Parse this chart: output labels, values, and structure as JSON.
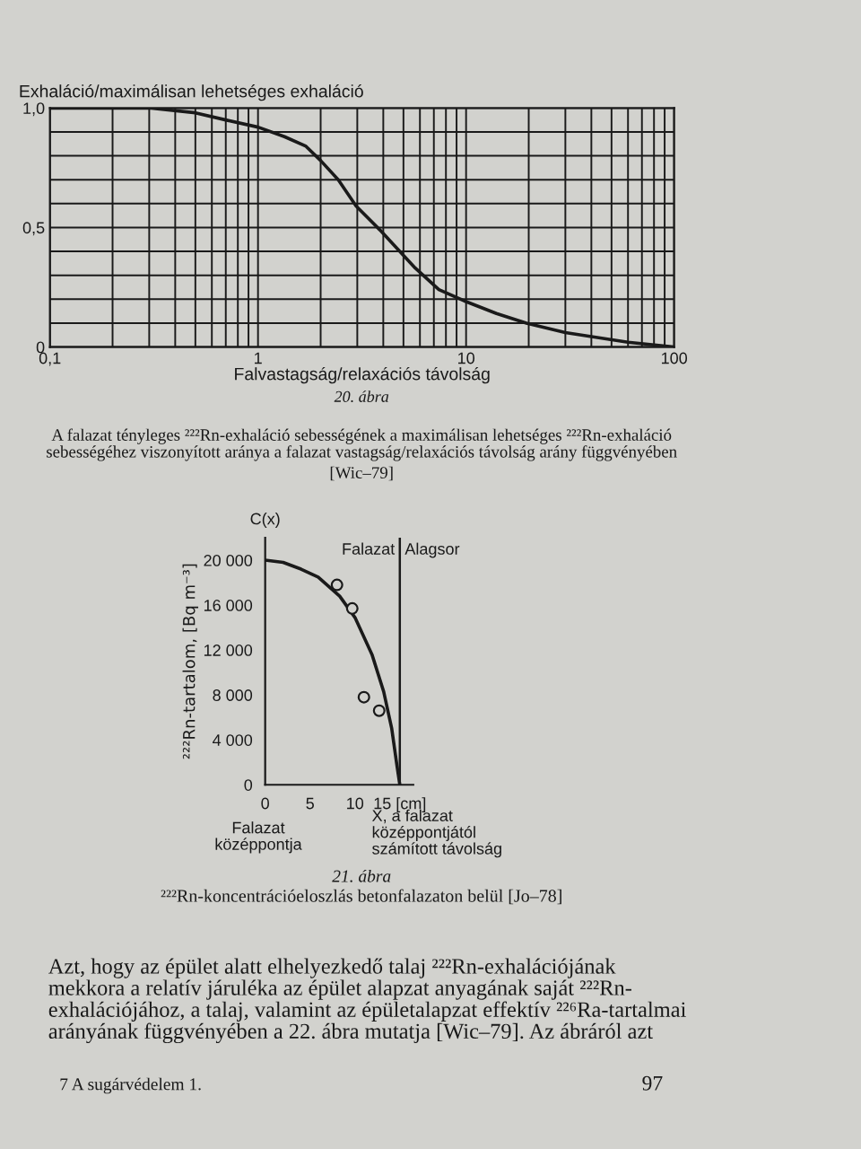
{
  "chart_data": [
    {
      "type": "line",
      "log": "x",
      "grid": true,
      "ylabel": "Exhaláció/maximálisan lehetséges exhaláció",
      "xlabel": "Falvastagság/relaxációs távolság",
      "xlim": [
        0.1,
        100
      ],
      "ylim": [
        0,
        1
      ],
      "xticks": [
        {
          "value": 0.1,
          "label": "0,1"
        },
        {
          "value": 0.2,
          "label": null
        },
        {
          "value": 0.3,
          "label": null
        },
        {
          "value": 0.4,
          "label": null
        },
        {
          "value": 0.5,
          "label": null
        },
        {
          "value": 0.6,
          "label": null
        },
        {
          "value": 0.7,
          "label": null
        },
        {
          "value": 0.8,
          "label": null
        },
        {
          "value": 0.9,
          "label": null
        },
        1,
        {
          "value": 2,
          "label": null
        },
        {
          "value": 3,
          "label": null
        },
        {
          "value": 4,
          "label": null
        },
        {
          "value": 5,
          "label": null
        },
        {
          "value": 6,
          "label": null
        },
        {
          "value": 7,
          "label": null
        },
        {
          "value": 8,
          "label": null
        },
        {
          "value": 9,
          "label": null
        },
        10,
        {
          "value": 20,
          "label": null
        },
        {
          "value": 30,
          "label": null
        },
        {
          "value": 40,
          "label": null
        },
        {
          "value": 50,
          "label": null
        },
        {
          "value": 60,
          "label": null
        },
        {
          "value": 70,
          "label": null
        },
        {
          "value": 80,
          "label": null
        },
        {
          "value": 90,
          "label": null
        },
        100
      ],
      "yticks": [
        0,
        {
          "value": 0.1,
          "label": null
        },
        {
          "value": 0.2,
          "label": null
        },
        {
          "value": 0.3,
          "label": null
        },
        {
          "value": 0.4,
          "label": null
        },
        {
          "value": 0.5,
          "label": "0,5"
        },
        {
          "value": 0.6,
          "label": null
        },
        {
          "value": 0.7,
          "label": null
        },
        {
          "value": 0.8,
          "label": null
        },
        {
          "value": 0.9,
          "label": null
        },
        {
          "value": 1.0,
          "label": "1,0"
        }
      ],
      "series": [
        {
          "color": "#1a1a1a",
          "x": [
            0.1,
            0.3,
            0.5,
            0.7,
            1,
            1.34,
            1.7,
            2.0,
            2.43,
            2.96,
            3.85,
            5.7,
            7.4,
            10,
            14,
            19.5,
            30,
            60,
            100
          ],
          "values": [
            1.0,
            1.0,
            0.98,
            0.95,
            0.92,
            0.88,
            0.84,
            0.78,
            0.7,
            0.59,
            0.49,
            0.33,
            0.24,
            0.19,
            0.14,
            0.1,
            0.06,
            0.02,
            0.0
          ]
        }
      ],
      "annotations": [
        "20. ábra",
        "A falazat tényleges ²²²Rn-exhaláció sebességének a maximálisan lehetséges ²²²Rn-exhaláció\nsebességéhez viszonyított aránya a falazat vastagság/relaxációs távolság arány függvényében",
        "[Wic–79]"
      ]
    },
    {
      "type": "line",
      "grid": false,
      "ylabel": "²²²Rn-tartalom, [Bq m⁻³]",
      "xlabel": "X, a falazat\nközéppontjától\nszámított távolság",
      "xlim": [
        0,
        16.5
      ],
      "ylim": [
        0,
        22000
      ],
      "xticks": [
        0,
        5,
        10,
        {
          "value": 15,
          "label": "15 [cm]"
        }
      ],
      "yticks": [
        0,
        {
          "value": 4000,
          "label": "4 000"
        },
        {
          "value": 8000,
          "label": "8 000"
        },
        {
          "value": 12000,
          "label": "12 000"
        },
        {
          "value": 16000,
          "label": "16 000"
        },
        {
          "value": 20000,
          "label": "20 000"
        }
      ],
      "ref_lines": [
        {
          "axis": "x",
          "value": 15,
          "label": "Alagsor",
          "color": "#1a1a1a"
        }
      ],
      "series": [
        {
          "type": "line",
          "color": "#1a1a1a",
          "x": [
            0,
            2,
            4,
            5.9,
            8.3,
            10,
            11.9,
            13.2,
            14.1,
            14.7,
            15
          ],
          "values": [
            20000,
            19800,
            19200,
            18500,
            16800,
            14900,
            11600,
            8300,
            5000,
            1600,
            0
          ]
        },
        {
          "type": "scatter",
          "marker": "circle",
          "color": "#1a1a1a",
          "x": [
            8.0,
            9.7,
            11.0,
            12.7
          ],
          "values": [
            17800,
            15700,
            7800,
            6600
          ]
        }
      ],
      "annotations": [
        "C(x)",
        "Falazat",
        "Falazat\nközéppontja",
        "21. ábra",
        "²²²Rn-koncentrációeloszlás betonfalazaton belül [Jo–78]",
        "Azt, hogy az épület alatt elhelyezkedő talaj ²²²Rn-exhalációjának\nmekkora a relatív járuléka az épület alapzat anyagának saját ²²²Rn-\nexhalációjához, a talaj, valamint az épületalapzat effektív ²²⁶Ra-tartalmai\narányának függvényében a 22. ábra mutatja [Wic–79]. Az ábráról azt",
        "7 A sugárvédelem 1.",
        "97"
      ]
    }
  ]
}
